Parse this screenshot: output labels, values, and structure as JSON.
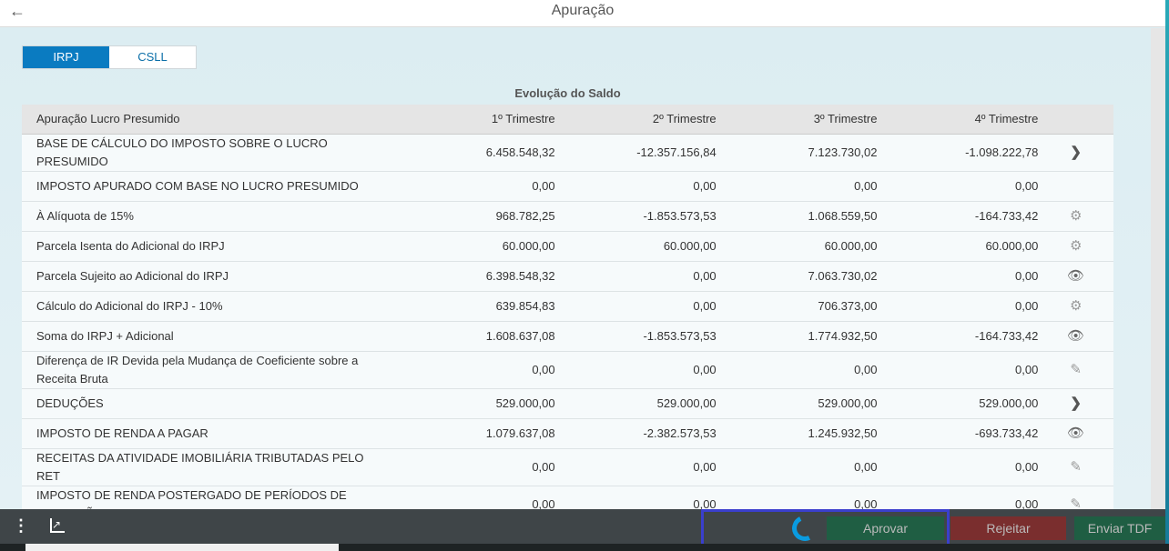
{
  "header": {
    "title": "Apuração",
    "back_icon": "arrow-left-icon"
  },
  "tabs": [
    {
      "label": "IRPJ",
      "active": true
    },
    {
      "label": "CSLL",
      "active": false
    }
  ],
  "table": {
    "caption": "Evolução do Saldo",
    "columns": [
      "Apuração Lucro Presumido",
      "1º Trimestre",
      "2º Trimestre",
      "3º Trimestre",
      "4º Trimestre"
    ],
    "rows": [
      {
        "label": "BASE DE CÁLCULO DO IMPOSTO SOBRE O LUCRO PRESUMIDO",
        "values": [
          "6.458.548,32",
          "-12.357.156,84",
          "7.123.730,02",
          "-1.098.222,78"
        ],
        "icon": "chevron-right"
      },
      {
        "label": "IMPOSTO APURADO COM BASE NO LUCRO PRESUMIDO",
        "values": [
          "0,00",
          "0,00",
          "0,00",
          "0,00"
        ],
        "icon": ""
      },
      {
        "label": "À Alíquota de 15%",
        "values": [
          "968.782,25",
          "-1.853.573,53",
          "1.068.559,50",
          "-164.733,42"
        ],
        "icon": "gear"
      },
      {
        "label": "Parcela Isenta do Adicional do IRPJ",
        "values": [
          "60.000,00",
          "60.000,00",
          "60.000,00",
          "60.000,00"
        ],
        "icon": "gear"
      },
      {
        "label": "Parcela Sujeito ao Adicional do IRPJ",
        "values": [
          "6.398.548,32",
          "0,00",
          "7.063.730,02",
          "0,00"
        ],
        "icon": "eye"
      },
      {
        "label": "Cálculo do Adicional do IRPJ - 10%",
        "values": [
          "639.854,83",
          "0,00",
          "706.373,00",
          "0,00"
        ],
        "icon": "gear"
      },
      {
        "label": "Soma do IRPJ + Adicional",
        "values": [
          "1.608.637,08",
          "-1.853.573,53",
          "1.774.932,50",
          "-164.733,42"
        ],
        "icon": "eye"
      },
      {
        "label": "Diferença de IR Devida pela Mudança de Coeficiente sobre a Receita Bruta",
        "values": [
          "0,00",
          "0,00",
          "0,00",
          "0,00"
        ],
        "icon": "pencil"
      },
      {
        "label": "DEDUÇÕES",
        "values": [
          "529.000,00",
          "529.000,00",
          "529.000,00",
          "529.000,00"
        ],
        "icon": "chevron-right"
      },
      {
        "label": "IMPOSTO DE RENDA A PAGAR",
        "values": [
          "1.079.637,08",
          "-2.382.573,53",
          "1.245.932,50",
          "-693.733,42"
        ],
        "icon": "eye"
      },
      {
        "label": "RECEITAS DA ATIVIDADE IMOBILIÁRIA TRIBUTADAS PELO RET",
        "values": [
          "0,00",
          "0,00",
          "0,00",
          "0,00"
        ],
        "icon": "pencil"
      },
      {
        "label": "IMPOSTO DE RENDA POSTERGADO DE PERÍODOS DE APURAÇÃO",
        "values": [
          "0,00",
          "0,00",
          "0,00",
          "0,00"
        ],
        "icon": "pencil"
      }
    ]
  },
  "footer": {
    "approve": "Aprovar",
    "reject": "Rejeitar",
    "send": "Enviar TDF",
    "colors": {
      "approve": "#1f5e43",
      "reject": "#7a2e2e",
      "send": "#1f5e43"
    }
  }
}
